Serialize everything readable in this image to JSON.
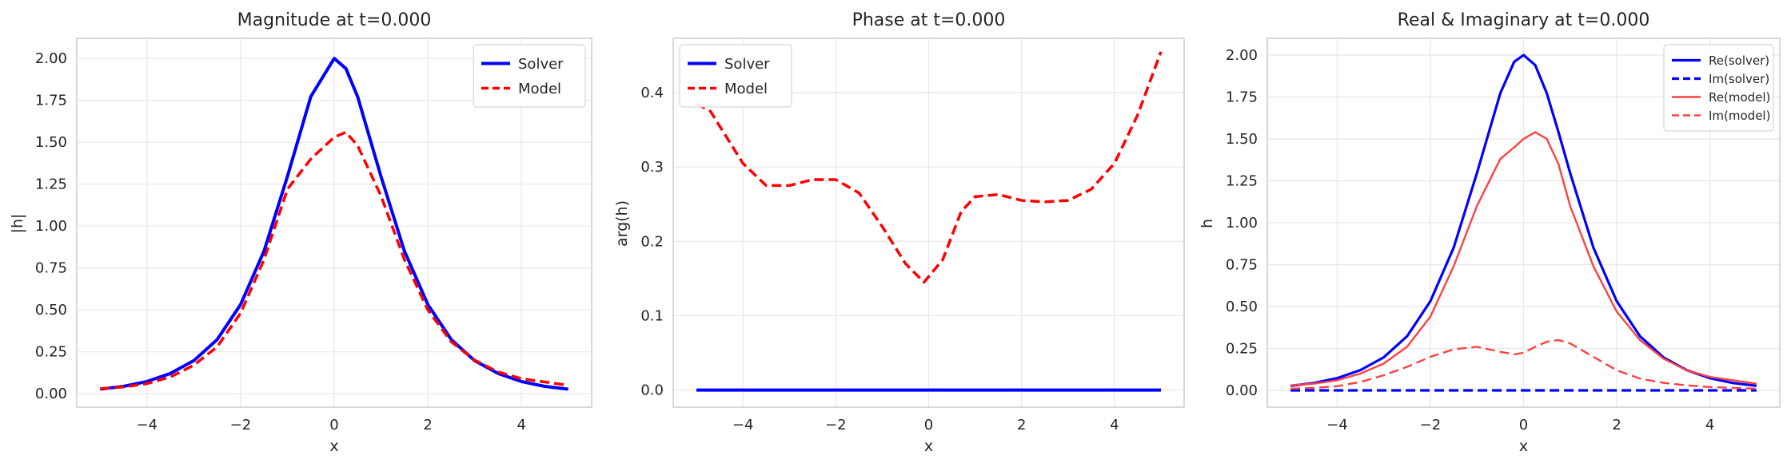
{
  "chart_data": [
    {
      "type": "line",
      "title": "Magnitude at t=0.000",
      "xlabel": "x",
      "ylabel": "|h|",
      "xlim": [
        -5.5,
        5.5
      ],
      "ylim": [
        -0.08,
        2.12
      ],
      "xticks": [
        -4,
        -2,
        0,
        2,
        4
      ],
      "xtick_labels": [
        "−4",
        "−2",
        "0",
        "2",
        "4"
      ],
      "yticks": [
        0.0,
        0.25,
        0.5,
        0.75,
        1.0,
        1.25,
        1.5,
        1.75,
        2.0
      ],
      "ytick_labels": [
        "0.00",
        "0.25",
        "0.50",
        "0.75",
        "1.00",
        "1.25",
        "1.50",
        "1.75",
        "2.00"
      ],
      "grid": true,
      "legend": {
        "position": "top-right",
        "entries": [
          "Solver",
          "Model"
        ]
      },
      "x": [
        -5,
        -4.5,
        -4,
        -3.5,
        -3,
        -2.5,
        -2,
        -1.5,
        -1,
        -0.5,
        0,
        0.25,
        0.5,
        1,
        1.5,
        2,
        2.5,
        3,
        3.5,
        4,
        4.5,
        5
      ],
      "series": [
        {
          "name": "Solver",
          "color": "#0000ff",
          "style": "solid",
          "values": [
            0.027,
            0.044,
            0.073,
            0.121,
            0.197,
            0.323,
            0.532,
            0.851,
            1.296,
            1.772,
            2.0,
            1.94,
            1.772,
            1.296,
            0.851,
            0.532,
            0.323,
            0.197,
            0.121,
            0.073,
            0.044,
            0.027
          ]
        },
        {
          "name": "Model",
          "color": "#ff0000",
          "style": "dashed",
          "values": [
            0.03,
            0.04,
            0.06,
            0.1,
            0.17,
            0.28,
            0.48,
            0.8,
            1.22,
            1.4,
            1.53,
            1.56,
            1.48,
            1.18,
            0.8,
            0.5,
            0.31,
            0.2,
            0.13,
            0.09,
            0.07,
            0.05
          ]
        }
      ]
    },
    {
      "type": "line",
      "title": "Phase at t=0.000",
      "xlabel": "x",
      "ylabel": "arg(h)",
      "xlim": [
        -5.5,
        5.5
      ],
      "ylim": [
        -0.023,
        0.473
      ],
      "xticks": [
        -4,
        -2,
        0,
        2,
        4
      ],
      "xtick_labels": [
        "−4",
        "−2",
        "0",
        "2",
        "4"
      ],
      "yticks": [
        0.0,
        0.1,
        0.2,
        0.3,
        0.4
      ],
      "ytick_labels": [
        "0.0",
        "0.1",
        "0.2",
        "0.3",
        "0.4"
      ],
      "grid": true,
      "legend": {
        "position": "top-left",
        "entries": [
          "Solver",
          "Model"
        ]
      },
      "x": [
        -5,
        -4.7,
        -4.5,
        -4,
        -3.5,
        -3,
        -2.5,
        -2,
        -1.5,
        -1,
        -0.5,
        -0.1,
        0.3,
        0.7,
        1,
        1.5,
        2,
        2.5,
        3,
        3.5,
        4,
        4.5,
        5
      ],
      "series": [
        {
          "name": "Solver",
          "color": "#0000ff",
          "style": "solid",
          "values": [
            0,
            0,
            0,
            0,
            0,
            0,
            0,
            0,
            0,
            0,
            0,
            0,
            0,
            0,
            0,
            0,
            0,
            0,
            0,
            0,
            0,
            0,
            0
          ]
        },
        {
          "name": "Model",
          "color": "#ff0000",
          "style": "dashed",
          "values": [
            0.385,
            0.375,
            0.355,
            0.305,
            0.275,
            0.275,
            0.283,
            0.283,
            0.265,
            0.22,
            0.17,
            0.145,
            0.175,
            0.24,
            0.26,
            0.263,
            0.255,
            0.253,
            0.255,
            0.27,
            0.305,
            0.37,
            0.455
          ]
        }
      ]
    },
    {
      "type": "line",
      "title": "Real & Imaginary at t=0.000",
      "xlabel": "x",
      "ylabel": "h",
      "xlim": [
        -5.5,
        5.5
      ],
      "ylim": [
        -0.1,
        2.1
      ],
      "xticks": [
        -4,
        -2,
        0,
        2,
        4
      ],
      "xtick_labels": [
        "−4",
        "−2",
        "0",
        "2",
        "4"
      ],
      "yticks": [
        0.0,
        0.25,
        0.5,
        0.75,
        1.0,
        1.25,
        1.5,
        1.75,
        2.0
      ],
      "ytick_labels": [
        "0.00",
        "0.25",
        "0.50",
        "0.75",
        "1.00",
        "1.25",
        "1.50",
        "1.75",
        "2.00"
      ],
      "grid": true,
      "legend": {
        "position": "top-right",
        "entries": [
          "Re(solver)",
          "Im(solver)",
          "Re(model)",
          "Im(model)"
        ]
      },
      "x": [
        -5,
        -4.5,
        -4,
        -3.5,
        -3,
        -2.5,
        -2,
        -1.5,
        -1,
        -0.5,
        -0.2,
        0,
        0.25,
        0.5,
        0.75,
        1,
        1.5,
        2,
        2.5,
        3,
        3.5,
        4,
        4.5,
        5
      ],
      "series": [
        {
          "name": "Re(solver)",
          "color": "#0000ff",
          "style": "solid",
          "values": [
            0.027,
            0.044,
            0.073,
            0.121,
            0.197,
            0.323,
            0.532,
            0.851,
            1.296,
            1.772,
            1.96,
            2.0,
            1.94,
            1.772,
            1.54,
            1.296,
            0.851,
            0.532,
            0.323,
            0.197,
            0.121,
            0.073,
            0.044,
            0.027
          ]
        },
        {
          "name": "Im(solver)",
          "color": "#0000ff",
          "style": "dashed",
          "values": [
            0,
            0,
            0,
            0,
            0,
            0,
            0,
            0,
            0,
            0,
            0,
            0,
            0,
            0,
            0,
            0,
            0,
            0,
            0,
            0,
            0,
            0,
            0,
            0
          ]
        },
        {
          "name": "Re(model)",
          "color": "#ff4040",
          "style": "solid",
          "values": [
            0.03,
            0.04,
            0.06,
            0.1,
            0.16,
            0.26,
            0.44,
            0.74,
            1.1,
            1.38,
            1.45,
            1.5,
            1.54,
            1.5,
            1.35,
            1.1,
            0.74,
            0.47,
            0.3,
            0.19,
            0.12,
            0.08,
            0.06,
            0.04
          ]
        },
        {
          "name": "Im(model)",
          "color": "#ff4040",
          "style": "dashed",
          "values": [
            0.01,
            0.015,
            0.025,
            0.05,
            0.09,
            0.14,
            0.2,
            0.245,
            0.26,
            0.23,
            0.215,
            0.225,
            0.26,
            0.29,
            0.3,
            0.28,
            0.2,
            0.12,
            0.07,
            0.045,
            0.03,
            0.02,
            0.015,
            0.01
          ]
        }
      ]
    }
  ]
}
